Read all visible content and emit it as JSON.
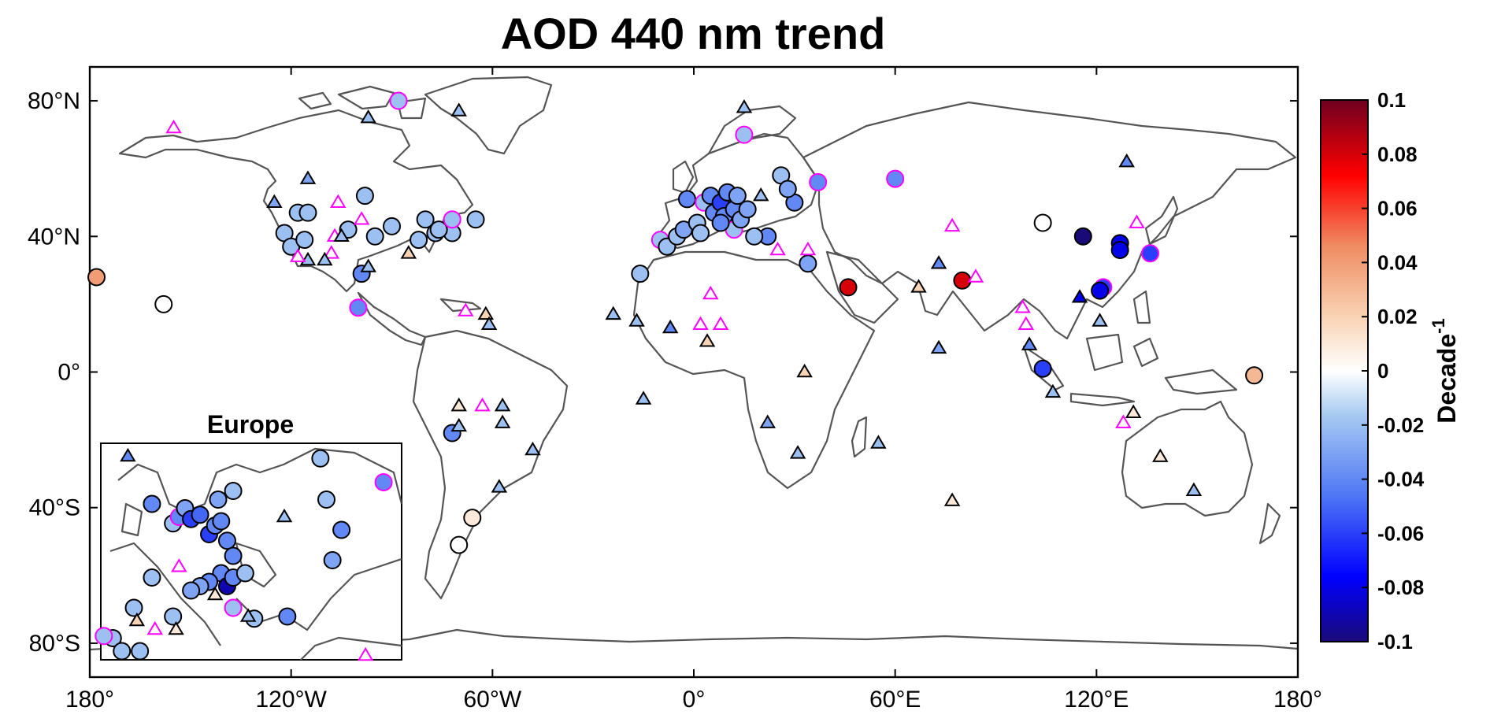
{
  "chart_data": {
    "type": "map-scatter",
    "title": "AOD 440 nm trend",
    "x_ticks": [
      "180°",
      "120°W",
      "60°W",
      "0°",
      "60°E",
      "120°E",
      "180°"
    ],
    "y_ticks": [
      "80°N",
      "40°N",
      "0°",
      "40°S",
      "80°S"
    ],
    "inset_title": "Europe",
    "colorbar": {
      "label": "Decade",
      "label_exp": "-1",
      "range": [
        -0.1,
        0.1
      ],
      "ticks": [
        "0.1",
        "0.08",
        "0.06",
        "0.04",
        "0.02",
        "0",
        "-0.02",
        "-0.04",
        "-0.06",
        "-0.08",
        "-0.1"
      ],
      "colors": [
        "#1a0a78",
        "#0000ff",
        "#4f77f5",
        "#a8cbf2",
        "#ffffff",
        "#f9d3b4",
        "#ef8c62",
        "#ff0000",
        "#6e0020"
      ]
    },
    "markers": {
      "circle": "significant trend",
      "triangle": "non-significant trend",
      "magenta_edge": "#ff00ff"
    },
    "sites": [
      {
        "lon": -178,
        "lat": 28,
        "shape": "circle",
        "trend": 0.04
      },
      {
        "lon": -158,
        "lat": 20,
        "shape": "circle",
        "trend": 0.0
      },
      {
        "lon": -118,
        "lat": 47,
        "shape": "circle",
        "trend": -0.02
      },
      {
        "lon": -115,
        "lat": 47,
        "shape": "circle",
        "trend": -0.02
      },
      {
        "lon": -122,
        "lat": 41,
        "shape": "circle",
        "trend": -0.02
      },
      {
        "lon": -120,
        "lat": 37,
        "shape": "circle",
        "trend": -0.02
      },
      {
        "lon": -116,
        "lat": 39,
        "shape": "circle",
        "trend": -0.02
      },
      {
        "lon": -98,
        "lat": 52,
        "shape": "circle",
        "trend": -0.02
      },
      {
        "lon": -103,
        "lat": 42,
        "shape": "circle",
        "trend": -0.02
      },
      {
        "lon": -95,
        "lat": 40,
        "shape": "circle",
        "trend": -0.02
      },
      {
        "lon": -90,
        "lat": 43,
        "shape": "circle",
        "trend": -0.02
      },
      {
        "lon": -82,
        "lat": 39,
        "shape": "circle",
        "trend": -0.02
      },
      {
        "lon": -77,
        "lat": 41,
        "shape": "circle",
        "trend": -0.02
      },
      {
        "lon": -72,
        "lat": 41,
        "shape": "circle",
        "trend": -0.02
      },
      {
        "lon": -65,
        "lat": 45,
        "shape": "circle",
        "trend": -0.02
      },
      {
        "lon": -76,
        "lat": 42,
        "shape": "circle",
        "trend": -0.02
      },
      {
        "lon": -80,
        "lat": 45,
        "shape": "circle",
        "trend": -0.02
      },
      {
        "lon": -99,
        "lat": 29,
        "shape": "circle",
        "trend": -0.04
      },
      {
        "lon": -100,
        "lat": 19,
        "shape": "circle",
        "trend": -0.04,
        "magenta": true
      },
      {
        "lon": -72,
        "lat": 45,
        "shape": "circle",
        "trend": -0.02,
        "magenta": true
      },
      {
        "lon": -88,
        "lat": 80,
        "shape": "circle",
        "trend": -0.02,
        "magenta": true
      },
      {
        "lon": -16,
        "lat": 29,
        "shape": "circle",
        "trend": -0.02
      },
      {
        "lon": -72,
        "lat": -18,
        "shape": "circle",
        "trend": -0.04
      },
      {
        "lon": -66,
        "lat": -43,
        "shape": "circle",
        "trend": 0.01
      },
      {
        "lon": -70,
        "lat": -51,
        "shape": "circle",
        "trend": 0.0
      },
      {
        "lon": 15,
        "lat": 70,
        "shape": "circle",
        "trend": -0.02,
        "magenta": true
      },
      {
        "lon": 37,
        "lat": 56,
        "shape": "circle",
        "trend": -0.04,
        "magenta": true
      },
      {
        "lon": 60,
        "lat": 57,
        "shape": "circle",
        "trend": -0.04,
        "magenta": true
      },
      {
        "lon": 26,
        "lat": 58,
        "shape": "circle",
        "trend": -0.02
      },
      {
        "lon": 30,
        "lat": 50,
        "shape": "circle",
        "trend": -0.04
      },
      {
        "lon": 28,
        "lat": 54,
        "shape": "circle",
        "trend": -0.03
      },
      {
        "lon": 22,
        "lat": 40,
        "shape": "circle",
        "trend": -0.04
      },
      {
        "lon": 18,
        "lat": 40,
        "shape": "circle",
        "trend": -0.02
      },
      {
        "lon": 34,
        "lat": 32,
        "shape": "circle",
        "trend": -0.03
      },
      {
        "lon": -10,
        "lat": 39,
        "shape": "circle",
        "trend": -0.02,
        "magenta": true
      },
      {
        "lon": -8,
        "lat": 37,
        "shape": "circle",
        "trend": -0.02
      },
      {
        "lon": -5,
        "lat": 40,
        "shape": "circle",
        "trend": -0.02
      },
      {
        "lon": -3,
        "lat": 42,
        "shape": "circle",
        "trend": -0.03
      },
      {
        "lon": -2,
        "lat": 51,
        "shape": "circle",
        "trend": -0.04
      },
      {
        "lon": 1,
        "lat": 44,
        "shape": "circle",
        "trend": -0.02
      },
      {
        "lon": 3,
        "lat": 50,
        "shape": "circle",
        "trend": -0.02,
        "magenta": true
      },
      {
        "lon": 5,
        "lat": 52,
        "shape": "circle",
        "trend": -0.04
      },
      {
        "lon": 6,
        "lat": 47,
        "shape": "circle",
        "trend": -0.04
      },
      {
        "lon": 8,
        "lat": 50,
        "shape": "circle",
        "trend": -0.06
      },
      {
        "lon": 9,
        "lat": 46,
        "shape": "circle",
        "trend": -0.04
      },
      {
        "lon": 10,
        "lat": 53,
        "shape": "circle",
        "trend": -0.04
      },
      {
        "lon": 12,
        "lat": 48,
        "shape": "circle",
        "trend": -0.04
      },
      {
        "lon": 13,
        "lat": 52,
        "shape": "circle",
        "trend": -0.03
      },
      {
        "lon": 12,
        "lat": 42,
        "shape": "circle",
        "trend": -0.02,
        "magenta": true
      },
      {
        "lon": 14,
        "lat": 45,
        "shape": "circle",
        "trend": -0.03
      },
      {
        "lon": 2,
        "lat": 41,
        "shape": "circle",
        "trend": -0.02
      },
      {
        "lon": 8,
        "lat": 44,
        "shape": "circle",
        "trend": -0.04
      },
      {
        "lon": 16,
        "lat": 48,
        "shape": "circle",
        "trend": -0.03
      },
      {
        "lon": 46,
        "lat": 25,
        "shape": "circle",
        "trend": 0.08
      },
      {
        "lon": 80,
        "lat": 27,
        "shape": "circle",
        "trend": 0.08
      },
      {
        "lon": 104,
        "lat": 44,
        "shape": "circle",
        "trend": 0.0
      },
      {
        "lon": 116,
        "lat": 40,
        "shape": "circle",
        "trend": -0.1
      },
      {
        "lon": 127,
        "lat": 38,
        "shape": "circle",
        "trend": -0.08
      },
      {
        "lon": 127,
        "lat": 36,
        "shape": "circle",
        "trend": -0.08
      },
      {
        "lon": 122,
        "lat": 25,
        "shape": "circle",
        "trend": -0.06,
        "magenta": true
      },
      {
        "lon": 121,
        "lat": 24,
        "shape": "circle",
        "trend": -0.08
      },
      {
        "lon": 136,
        "lat": 35,
        "shape": "circle",
        "trend": -0.06,
        "magenta": true
      },
      {
        "lon": 104,
        "lat": 1,
        "shape": "circle",
        "trend": -0.06
      },
      {
        "lon": 167,
        "lat": -1,
        "shape": "circle",
        "trend": 0.03
      },
      {
        "lon": -155,
        "lat": 72,
        "shape": "triangle",
        "trend": 0.0,
        "magenta": true
      },
      {
        "lon": -97,
        "lat": 75,
        "shape": "triangle",
        "trend": -0.02
      },
      {
        "lon": -70,
        "lat": 77,
        "shape": "triangle",
        "trend": -0.02
      },
      {
        "lon": -115,
        "lat": 57,
        "shape": "triangle",
        "trend": -0.03
      },
      {
        "lon": -125,
        "lat": 50,
        "shape": "triangle",
        "trend": -0.03
      },
      {
        "lon": -106,
        "lat": 50,
        "shape": "triangle",
        "trend": 0.0,
        "magenta": true
      },
      {
        "lon": -99,
        "lat": 45,
        "shape": "triangle",
        "trend": 0.0,
        "magenta": true
      },
      {
        "lon": -107,
        "lat": 40,
        "shape": "triangle",
        "trend": 0.0,
        "magenta": true
      },
      {
        "lon": -108,
        "lat": 35,
        "shape": "triangle",
        "trend": 0.0,
        "magenta": true
      },
      {
        "lon": -115,
        "lat": 33,
        "shape": "triangle",
        "trend": -0.02
      },
      {
        "lon": -110,
        "lat": 33,
        "shape": "triangle",
        "trend": -0.02
      },
      {
        "lon": -105,
        "lat": 40,
        "shape": "triangle",
        "trend": -0.02
      },
      {
        "lon": -118,
        "lat": 34,
        "shape": "triangle",
        "trend": -0.02,
        "magenta": true
      },
      {
        "lon": -97,
        "lat": 31,
        "shape": "triangle",
        "trend": -0.02
      },
      {
        "lon": -85,
        "lat": 35,
        "shape": "triangle",
        "trend": 0.02
      },
      {
        "lon": -68,
        "lat": 18,
        "shape": "triangle",
        "trend": 0.0,
        "magenta": true
      },
      {
        "lon": -62,
        "lat": 17,
        "shape": "triangle",
        "trend": 0.02
      },
      {
        "lon": -61,
        "lat": 14,
        "shape": "triangle",
        "trend": -0.02
      },
      {
        "lon": -70,
        "lat": -10,
        "shape": "triangle",
        "trend": 0.01
      },
      {
        "lon": -63,
        "lat": -10,
        "shape": "triangle",
        "trend": 0.0,
        "magenta": true
      },
      {
        "lon": -57,
        "lat": -10,
        "shape": "triangle",
        "trend": -0.02
      },
      {
        "lon": -70,
        "lat": -16,
        "shape": "triangle",
        "trend": -0.02
      },
      {
        "lon": -57,
        "lat": -15,
        "shape": "triangle",
        "trend": -0.02
      },
      {
        "lon": -48,
        "lat": -23,
        "shape": "triangle",
        "trend": -0.02
      },
      {
        "lon": -58,
        "lat": -34,
        "shape": "triangle",
        "trend": -0.02
      },
      {
        "lon": 15,
        "lat": 78,
        "shape": "triangle",
        "trend": -0.02
      },
      {
        "lon": 20,
        "lat": 52,
        "shape": "triangle",
        "trend": -0.02
      },
      {
        "lon": -24,
        "lat": 17,
        "shape": "triangle",
        "trend": -0.02
      },
      {
        "lon": -17,
        "lat": 15,
        "shape": "triangle",
        "trend": -0.02
      },
      {
        "lon": -7,
        "lat": 13,
        "shape": "triangle",
        "trend": -0.04
      },
      {
        "lon": -15,
        "lat": -8,
        "shape": "triangle",
        "trend": -0.02
      },
      {
        "lon": 5,
        "lat": 23,
        "shape": "triangle",
        "trend": 0.0,
        "magenta": true
      },
      {
        "lon": 2,
        "lat": 14,
        "shape": "triangle",
        "trend": 0.0,
        "magenta": true
      },
      {
        "lon": 8,
        "lat": 14,
        "shape": "triangle",
        "trend": 0.0,
        "magenta": true
      },
      {
        "lon": 4,
        "lat": 9,
        "shape": "triangle",
        "trend": 0.02
      },
      {
        "lon": 34,
        "lat": 36,
        "shape": "triangle",
        "trend": 0.0,
        "magenta": true
      },
      {
        "lon": 25,
        "lat": 36,
        "shape": "triangle",
        "trend": 0.0,
        "magenta": true
      },
      {
        "lon": 33,
        "lat": 0,
        "shape": "triangle",
        "trend": 0.02
      },
      {
        "lon": 22,
        "lat": -15,
        "shape": "triangle",
        "trend": -0.03
      },
      {
        "lon": 31,
        "lat": -24,
        "shape": "triangle",
        "trend": -0.02
      },
      {
        "lon": 55,
        "lat": -21,
        "shape": "triangle",
        "trend": -0.02
      },
      {
        "lon": 77,
        "lat": -38,
        "shape": "triangle",
        "trend": 0.01
      },
      {
        "lon": 77,
        "lat": 43,
        "shape": "triangle",
        "trend": 0.0,
        "magenta": true
      },
      {
        "lon": 73,
        "lat": 32,
        "shape": "triangle",
        "trend": -0.04
      },
      {
        "lon": 67,
        "lat": 25,
        "shape": "triangle",
        "trend": 0.02
      },
      {
        "lon": 84,
        "lat": 28,
        "shape": "triangle",
        "trend": 0.01,
        "magenta": true
      },
      {
        "lon": 73,
        "lat": 7,
        "shape": "triangle",
        "trend": -0.03
      },
      {
        "lon": 98,
        "lat": 19,
        "shape": "triangle",
        "trend": -0.02,
        "magenta": true
      },
      {
        "lon": 99,
        "lat": 14,
        "shape": "triangle",
        "trend": 0.0,
        "magenta": true
      },
      {
        "lon": 100,
        "lat": 8,
        "shape": "triangle",
        "trend": -0.04
      },
      {
        "lon": 107,
        "lat": -6,
        "shape": "triangle",
        "trend": -0.02
      },
      {
        "lon": 115,
        "lat": 22,
        "shape": "triangle",
        "trend": -0.08
      },
      {
        "lon": 121,
        "lat": 15,
        "shape": "triangle",
        "trend": -0.02
      },
      {
        "lon": 129,
        "lat": 62,
        "shape": "triangle",
        "trend": -0.04
      },
      {
        "lon": 132,
        "lat": 44,
        "shape": "triangle",
        "trend": 0.0,
        "magenta": true
      },
      {
        "lon": 131,
        "lat": -12,
        "shape": "triangle",
        "trend": 0.01
      },
      {
        "lon": 128,
        "lat": -15,
        "shape": "triangle",
        "trend": 0.0,
        "magenta": true
      },
      {
        "lon": 139,
        "lat": -25,
        "shape": "triangle",
        "trend": 0.01
      },
      {
        "lon": 149,
        "lat": -35,
        "shape": "triangle",
        "trend": -0.02
      }
    ],
    "inset_sites": [
      {
        "x": 0.09,
        "y": 0.06,
        "shape": "triangle",
        "trend": -0.04
      },
      {
        "x": 0.17,
        "y": 0.28,
        "shape": "circle",
        "trend": -0.04
      },
      {
        "x": 0.24,
        "y": 0.37,
        "shape": "circle",
        "trend": -0.02
      },
      {
        "x": 0.26,
        "y": 0.34,
        "shape": "circle",
        "trend": -0.04,
        "magenta": true
      },
      {
        "x": 0.28,
        "y": 0.3,
        "shape": "circle",
        "trend": -0.03
      },
      {
        "x": 0.3,
        "y": 0.35,
        "shape": "circle",
        "trend": -0.06
      },
      {
        "x": 0.33,
        "y": 0.33,
        "shape": "circle",
        "trend": -0.05
      },
      {
        "x": 0.36,
        "y": 0.42,
        "shape": "circle",
        "trend": -0.06
      },
      {
        "x": 0.38,
        "y": 0.38,
        "shape": "circle",
        "trend": -0.04
      },
      {
        "x": 0.4,
        "y": 0.36,
        "shape": "circle",
        "trend": -0.04
      },
      {
        "x": 0.42,
        "y": 0.45,
        "shape": "circle",
        "trend": -0.04
      },
      {
        "x": 0.44,
        "y": 0.52,
        "shape": "circle",
        "trend": -0.04
      },
      {
        "x": 0.4,
        "y": 0.6,
        "shape": "circle",
        "trend": -0.04
      },
      {
        "x": 0.36,
        "y": 0.64,
        "shape": "circle",
        "trend": -0.04
      },
      {
        "x": 0.33,
        "y": 0.66,
        "shape": "circle",
        "trend": -0.03
      },
      {
        "x": 0.3,
        "y": 0.68,
        "shape": "circle",
        "trend": -0.03
      },
      {
        "x": 0.42,
        "y": 0.66,
        "shape": "circle",
        "trend": -0.09
      },
      {
        "x": 0.44,
        "y": 0.62,
        "shape": "circle",
        "trend": -0.04
      },
      {
        "x": 0.39,
        "y": 0.26,
        "shape": "circle",
        "trend": -0.03
      },
      {
        "x": 0.44,
        "y": 0.22,
        "shape": "circle",
        "trend": -0.02
      },
      {
        "x": 0.48,
        "y": 0.6,
        "shape": "circle",
        "trend": -0.02
      },
      {
        "x": 0.24,
        "y": 0.8,
        "shape": "circle",
        "trend": -0.02
      },
      {
        "x": 0.17,
        "y": 0.62,
        "shape": "circle",
        "trend": -0.02
      },
      {
        "x": 0.11,
        "y": 0.76,
        "shape": "circle",
        "trend": -0.02
      },
      {
        "x": 0.04,
        "y": 0.9,
        "shape": "circle",
        "trend": -0.02
      },
      {
        "x": 0.07,
        "y": 0.96,
        "shape": "circle",
        "trend": -0.02
      },
      {
        "x": 0.13,
        "y": 0.96,
        "shape": "circle",
        "trend": -0.02
      },
      {
        "x": 0.01,
        "y": 0.89,
        "shape": "circle",
        "trend": -0.02,
        "magenta": true
      },
      {
        "x": 0.12,
        "y": 0.82,
        "shape": "triangle",
        "trend": 0.02
      },
      {
        "x": 0.18,
        "y": 0.86,
        "shape": "triangle",
        "trend": 0.0,
        "magenta": true
      },
      {
        "x": 0.25,
        "y": 0.86,
        "shape": "triangle",
        "trend": 0.01
      },
      {
        "x": 0.26,
        "y": 0.57,
        "shape": "triangle",
        "trend": 0.0,
        "magenta": true
      },
      {
        "x": 0.44,
        "y": 0.76,
        "shape": "circle",
        "trend": -0.02,
        "magenta": true
      },
      {
        "x": 0.51,
        "y": 0.81,
        "shape": "circle",
        "trend": -0.02
      },
      {
        "x": 0.49,
        "y": 0.8,
        "shape": "triangle",
        "trend": -0.02
      },
      {
        "x": 0.62,
        "y": 0.8,
        "shape": "circle",
        "trend": -0.04
      },
      {
        "x": 0.61,
        "y": 0.34,
        "shape": "triangle",
        "trend": -0.02
      },
      {
        "x": 0.73,
        "y": 0.07,
        "shape": "circle",
        "trend": -0.02
      },
      {
        "x": 0.75,
        "y": 0.26,
        "shape": "circle",
        "trend": -0.02
      },
      {
        "x": 0.8,
        "y": 0.4,
        "shape": "circle",
        "trend": -0.04
      },
      {
        "x": 0.77,
        "y": 0.54,
        "shape": "circle",
        "trend": -0.03
      },
      {
        "x": 0.94,
        "y": 0.18,
        "shape": "circle",
        "trend": -0.04,
        "magenta": true
      },
      {
        "x": 0.88,
        "y": 0.98,
        "shape": "triangle",
        "trend": 0.0,
        "magenta": true
      },
      {
        "x": 0.38,
        "y": 0.7,
        "shape": "triangle",
        "trend": 0.01
      }
    ]
  }
}
